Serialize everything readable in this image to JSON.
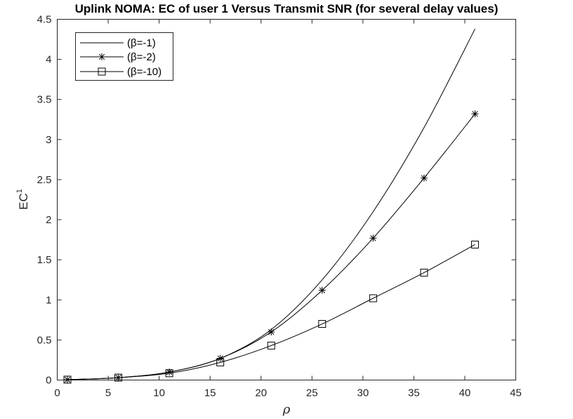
{
  "chart_data": {
    "type": "line",
    "title": "Uplink NOMA: EC of user 1 Versus Transmit SNR (for several delay values)",
    "xlabel": "ρ",
    "ylabel": "EC",
    "ylabel_superscript": "1",
    "xlim": [
      0,
      45
    ],
    "ylim": [
      0,
      4.5
    ],
    "xticks": [
      0,
      5,
      10,
      15,
      20,
      25,
      30,
      35,
      40,
      45
    ],
    "yticks": [
      0,
      0.5,
      1,
      1.5,
      2,
      2.5,
      3,
      3.5,
      4,
      4.5
    ],
    "xtick_labels": [
      "0",
      "5",
      "10",
      "15",
      "20",
      "25",
      "30",
      "35",
      "40",
      "45"
    ],
    "ytick_labels": [
      "0",
      "0.5",
      "1",
      "1.5",
      "2",
      "2.5",
      "3",
      "3.5",
      "4",
      "4.5"
    ],
    "legend_position": "top-left",
    "grid": false,
    "series": [
      {
        "name": "(β=-1)",
        "marker": "none",
        "x": [
          1,
          6,
          11,
          16,
          21,
          26,
          31,
          36,
          41
        ],
        "y": [
          0.005,
          0.03,
          0.1,
          0.27,
          0.63,
          1.25,
          2.1,
          3.15,
          4.38
        ]
      },
      {
        "name": "(β=-2)",
        "marker": "star",
        "x": [
          1,
          6,
          11,
          16,
          21,
          26,
          31,
          36,
          41
        ],
        "y": [
          0.005,
          0.03,
          0.1,
          0.27,
          0.6,
          1.12,
          1.77,
          2.52,
          3.32
        ]
      },
      {
        "name": "(β=-10)",
        "marker": "square",
        "x": [
          1,
          6,
          11,
          16,
          21,
          26,
          31,
          36,
          41
        ],
        "y": [
          0.005,
          0.03,
          0.085,
          0.22,
          0.43,
          0.7,
          1.02,
          1.34,
          1.69
        ]
      }
    ]
  }
}
